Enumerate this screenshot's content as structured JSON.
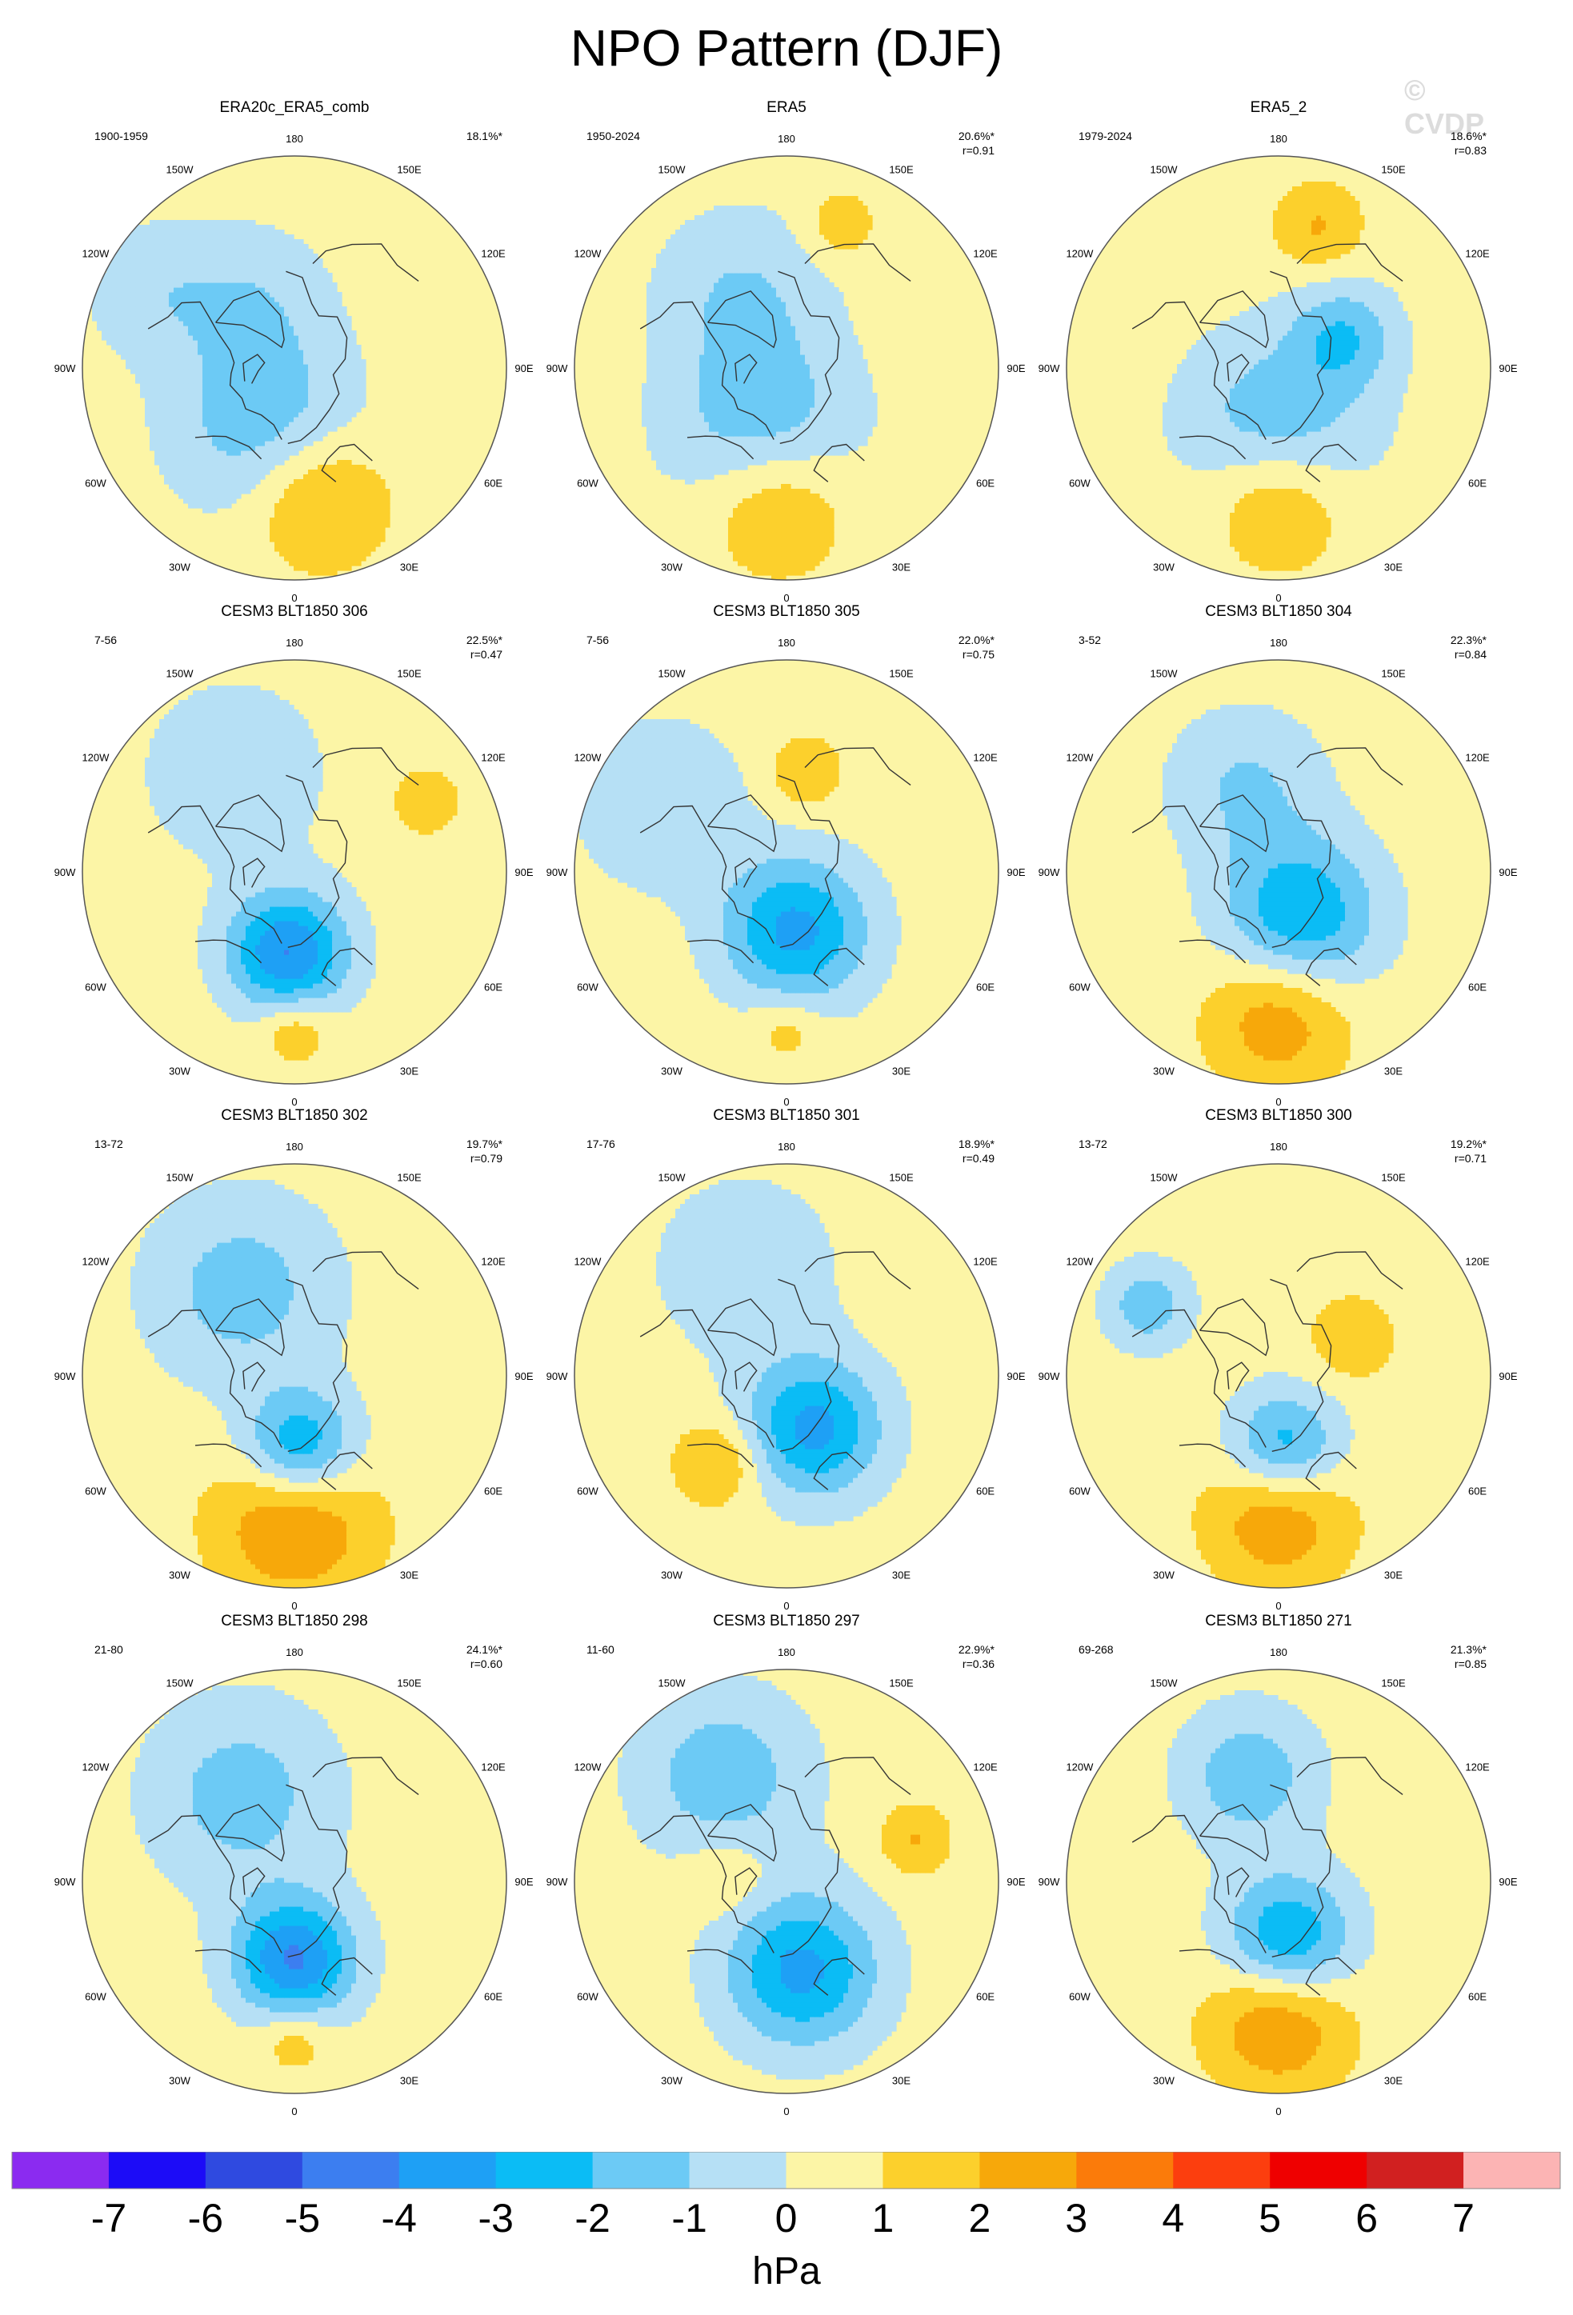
{
  "title": "NPO Pattern (DJF)",
  "watermark": "© CVDP",
  "lon_labels": [
    "180",
    "150E",
    "120E",
    "90E",
    "60E",
    "30E",
    "0",
    "30W",
    "60W",
    "90W",
    "120W",
    "150W"
  ],
  "colors": {
    "land_outline": "#333333",
    "circle_outline": "#555555",
    "watermark": "#dcdcdc"
  },
  "panels": [
    {
      "title": "ERA20c_ERA5_comb",
      "years": "1900-1959",
      "pct": "18.1%*",
      "r": "",
      "blobs": [
        {
          "c": 2,
          "lon": 170,
          "lat": 48,
          "amp": 2.2,
          "s": 16
        },
        {
          "c": -1,
          "lon": 210,
          "lat": 70,
          "amp": 2.2,
          "s": 22
        },
        {
          "c": -1,
          "lon": 330,
          "lat": 62,
          "amp": 1.2,
          "s": 18
        },
        {
          "c": -1,
          "lon": 300,
          "lat": 35,
          "amp": 1.1,
          "s": 16
        }
      ]
    },
    {
      "title": "ERA5",
      "years": "1950-2024",
      "pct": "20.6%*",
      "r": "r=0.91",
      "blobs": [
        {
          "c": 2,
          "lon": 185,
          "lat": 48,
          "amp": 2.4,
          "s": 17
        },
        {
          "c": -1,
          "lon": 200,
          "lat": 68,
          "amp": 2.5,
          "s": 22
        },
        {
          "c": -1,
          "lon": 330,
          "lat": 60,
          "amp": 1.5,
          "s": 20
        },
        {
          "c": 1,
          "lon": 20,
          "lat": 38,
          "amp": 1.3,
          "s": 8
        }
      ]
    },
    {
      "title": "ERA5_2",
      "years": "1979-2024",
      "pct": "18.6%*",
      "r": "r=0.83",
      "blobs": [
        {
          "c": 2,
          "lon": 180,
          "lat": 48,
          "amp": 2.2,
          "s": 16
        },
        {
          "c": -1,
          "lon": 180,
          "lat": 72,
          "amp": 2.4,
          "s": 22
        },
        {
          "c": -1,
          "lon": 60,
          "lat": 65,
          "amp": 2.2,
          "s": 12
        },
        {
          "c": 1,
          "lon": 15,
          "lat": 40,
          "amp": 1.6,
          "s": 10
        }
      ]
    },
    {
      "title": "CESM3 BLT1850 306",
      "years": "7-56",
      "pct": "22.5%*",
      "r": "r=0.47",
      "blobs": [
        {
          "c": 2,
          "lon": 180,
          "lat": 40,
          "amp": 1.6,
          "s": 8
        },
        {
          "c": -1,
          "lon": 185,
          "lat": 65,
          "amp": 4.5,
          "s": 14
        },
        {
          "c": -1,
          "lon": 330,
          "lat": 50,
          "amp": 1.2,
          "s": 22
        },
        {
          "c": 1,
          "lon": 60,
          "lat": 40,
          "amp": 1.2,
          "s": 8
        }
      ]
    },
    {
      "title": "CESM3 BLT1850 305",
      "years": "7-56",
      "pct": "22.0%*",
      "r": "r=0.75",
      "blobs": [
        {
          "c": 2,
          "lon": 180,
          "lat": 40,
          "amp": 1.2,
          "s": 8
        },
        {
          "c": -1,
          "lon": 170,
          "lat": 72,
          "amp": 3.8,
          "s": 17
        },
        {
          "c": -1,
          "lon": 300,
          "lat": 42,
          "amp": 1.4,
          "s": 20
        },
        {
          "c": 1,
          "lon": 10,
          "lat": 55,
          "amp": 1.6,
          "s": 8
        }
      ]
    },
    {
      "title": "CESM3 BLT1850 304",
      "years": "3-52",
      "pct": "22.3%*",
      "r": "r=0.84",
      "blobs": [
        {
          "c": 2,
          "lon": 180,
          "lat": 44,
          "amp": 2.4,
          "s": 16
        },
        {
          "c": -1,
          "lon": 150,
          "lat": 75,
          "amp": 3.5,
          "s": 18
        },
        {
          "c": -1,
          "lon": 340,
          "lat": 58,
          "amp": 1.6,
          "s": 18
        }
      ]
    },
    {
      "title": "CESM3 BLT1850 302",
      "years": "13-72",
      "pct": "19.7%*",
      "r": "r=0.79",
      "blobs": [
        {
          "c": 2,
          "lon": 180,
          "lat": 44,
          "amp": 2.8,
          "s": 18
        },
        {
          "c": -1,
          "lon": 175,
          "lat": 68,
          "amp": 3.8,
          "s": 13
        },
        {
          "c": -1,
          "lon": 330,
          "lat": 55,
          "amp": 2.0,
          "s": 22
        }
      ]
    },
    {
      "title": "CESM3 BLT1850 301",
      "years": "17-76",
      "pct": "18.9%*",
      "r": "r=0.49",
      "blobs": [
        {
          "c": 2,
          "lon": 220,
          "lat": 55,
          "amp": 1.8,
          "s": 10
        },
        {
          "c": -1,
          "lon": 150,
          "lat": 72,
          "amp": 3.8,
          "s": 16
        },
        {
          "c": -1,
          "lon": 340,
          "lat": 50,
          "amp": 1.2,
          "s": 22
        }
      ]
    },
    {
      "title": "CESM3 BLT1850 300",
      "years": "13-72",
      "pct": "19.2%*",
      "r": "r=0.71",
      "blobs": [
        {
          "c": 2,
          "lon": 180,
          "lat": 46,
          "amp": 2.6,
          "s": 16
        },
        {
          "c": -1,
          "lon": 175,
          "lat": 68,
          "amp": 3.4,
          "s": 13
        },
        {
          "c": -1,
          "lon": 300,
          "lat": 40,
          "amp": 2.2,
          "s": 10
        },
        {
          "c": 1,
          "lon": 60,
          "lat": 62,
          "amp": 1.3,
          "s": 10
        }
      ]
    },
    {
      "title": "CESM3 BLT1850 298",
      "years": "21-80",
      "pct": "24.1%*",
      "r": "r=0.60",
      "blobs": [
        {
          "c": 2,
          "lon": 180,
          "lat": 40,
          "amp": 1.4,
          "s": 8
        },
        {
          "c": -1,
          "lon": 180,
          "lat": 66,
          "amp": 4.6,
          "s": 14
        },
        {
          "c": -1,
          "lon": 330,
          "lat": 55,
          "amp": 2.0,
          "s": 22
        }
      ]
    },
    {
      "title": "CESM3 BLT1850 297",
      "years": "11-60",
      "pct": "22.9%*",
      "r": "r=0.36",
      "blobs": [
        {
          "c": 2,
          "lon": 70,
          "lat": 45,
          "amp": 1.6,
          "s": 8
        },
        {
          "c": -1,
          "lon": 170,
          "lat": 62,
          "amp": 3.8,
          "s": 18
        },
        {
          "c": -1,
          "lon": 330,
          "lat": 48,
          "amp": 2.2,
          "s": 20
        },
        {
          "c": 1,
          "lon": 280,
          "lat": 70,
          "amp": 1.1,
          "s": 10
        }
      ]
    },
    {
      "title": "CESM3 BLT1850 271",
      "years": "69-268",
      "pct": "21.3%*",
      "r": "r=0.85",
      "blobs": [
        {
          "c": 2,
          "lon": 180,
          "lat": 46,
          "amp": 2.8,
          "s": 16
        },
        {
          "c": -1,
          "lon": 170,
          "lat": 72,
          "amp": 3.8,
          "s": 15
        },
        {
          "c": -1,
          "lon": 345,
          "lat": 52,
          "amp": 2.2,
          "s": 16
        }
      ]
    }
  ],
  "colorbar": {
    "unit": "hPa",
    "levels": [
      -7,
      -6,
      -5,
      -4,
      -3,
      -2,
      -1,
      0,
      1,
      2,
      3,
      4,
      5,
      6,
      7
    ],
    "colors": [
      "#8b2bf0",
      "#1c0cf7",
      "#2f4ae0",
      "#3c7ef0",
      "#1ea0f5",
      "#0bbcf5",
      "#6ccaf5",
      "#b6e0f5",
      "#fcf5a6",
      "#fcd02c",
      "#f7a80a",
      "#fb7b0a",
      "#fc3e0e",
      "#ef0000",
      "#d12020",
      "#fcb4b4"
    ]
  }
}
